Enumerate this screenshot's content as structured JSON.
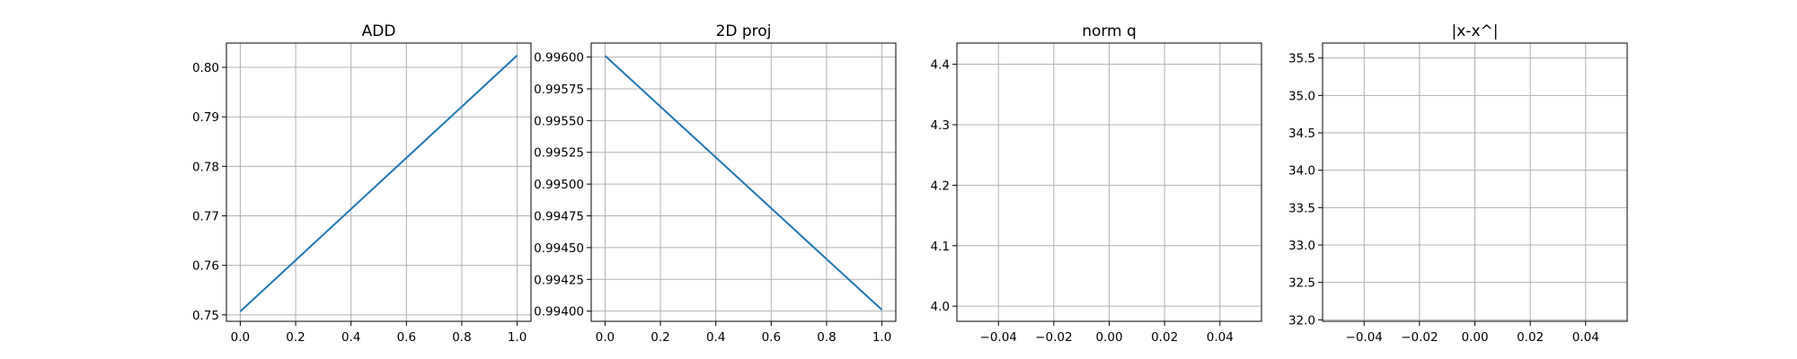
{
  "chart_data": [
    {
      "type": "line",
      "title": "ADD",
      "xlim": [
        -0.05,
        1.05
      ],
      "ylim": [
        0.7487,
        0.8049
      ],
      "x_ticks": [
        0.0,
        0.2,
        0.4,
        0.6,
        0.8,
        1.0
      ],
      "x_tick_labels": [
        "0.0",
        "0.2",
        "0.4",
        "0.6",
        "0.8",
        "1.0"
      ],
      "y_ticks": [
        0.75,
        0.76,
        0.77,
        0.78,
        0.79,
        0.8
      ],
      "y_tick_labels": [
        "0.75",
        "0.76",
        "0.77",
        "0.78",
        "0.79",
        "0.80"
      ],
      "grid": true,
      "series": [
        {
          "color": "#1f77b4",
          "x": [
            0.0,
            1.0
          ],
          "y": [
            0.7507,
            0.8024
          ]
        }
      ]
    },
    {
      "type": "line",
      "title": "2D proj",
      "xlim": [
        -0.05,
        1.05
      ],
      "ylim": [
        0.99392,
        0.99611
      ],
      "x_ticks": [
        0.0,
        0.2,
        0.4,
        0.6,
        0.8,
        1.0
      ],
      "x_tick_labels": [
        "0.0",
        "0.2",
        "0.4",
        "0.6",
        "0.8",
        "1.0"
      ],
      "y_ticks": [
        0.994,
        0.99425,
        0.9945,
        0.99475,
        0.995,
        0.99525,
        0.9955,
        0.99575,
        0.996
      ],
      "y_tick_labels": [
        "0.99400",
        "0.99425",
        "0.99450",
        "0.99475",
        "0.99500",
        "0.99525",
        "0.99550",
        "0.99575",
        "0.99600"
      ],
      "grid": true,
      "series": [
        {
          "color": "#1f77b4",
          "x": [
            0.0,
            1.0
          ],
          "y": [
            0.99601,
            0.99401
          ]
        }
      ]
    },
    {
      "type": "line",
      "title": "norm q",
      "xlim": [
        -0.055,
        0.055
      ],
      "ylim": [
        3.975,
        4.435
      ],
      "x_ticks": [
        -0.04,
        -0.02,
        0.0,
        0.02,
        0.04
      ],
      "x_tick_labels": [
        "−0.04",
        "−0.02",
        "0.00",
        "0.02",
        "0.04"
      ],
      "y_ticks": [
        4.0,
        4.1,
        4.2,
        4.3,
        4.4
      ],
      "y_tick_labels": [
        "4.0",
        "4.1",
        "4.2",
        "4.3",
        "4.4"
      ],
      "grid": true,
      "series": []
    },
    {
      "type": "line",
      "title": "|x-x^|",
      "xlim": [
        -0.055,
        0.055
      ],
      "ylim": [
        31.98,
        35.7
      ],
      "x_ticks": [
        -0.04,
        -0.02,
        0.0,
        0.02,
        0.04
      ],
      "x_tick_labels": [
        "−0.04",
        "−0.02",
        "0.00",
        "0.02",
        "0.04"
      ],
      "y_ticks": [
        32.0,
        32.5,
        33.0,
        33.5,
        34.0,
        34.5,
        35.0,
        35.5
      ],
      "y_tick_labels": [
        "32.0",
        "32.5",
        "33.0",
        "33.5",
        "34.0",
        "34.5",
        "35.0",
        "35.5"
      ],
      "grid": true,
      "series": []
    }
  ]
}
